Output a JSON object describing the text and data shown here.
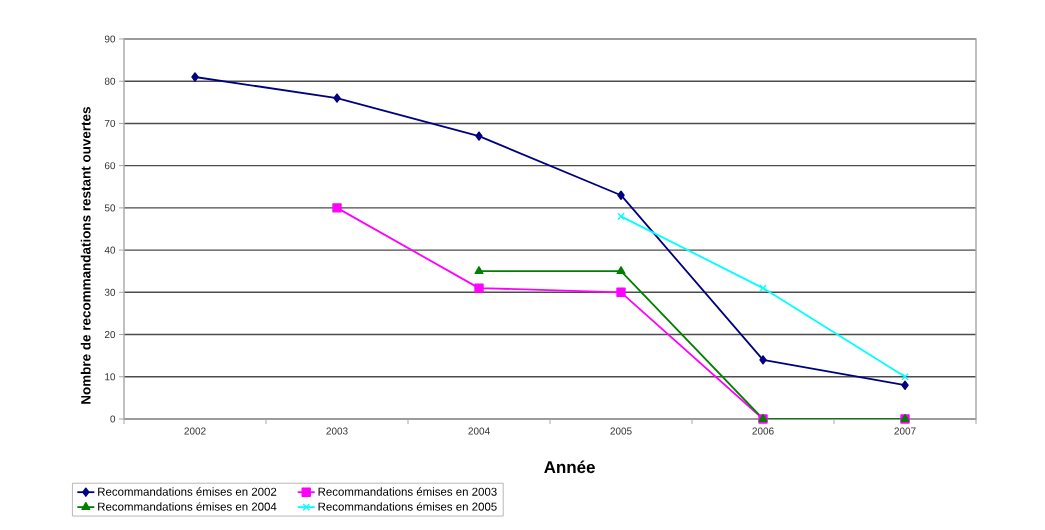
{
  "chart_data": {
    "type": "line",
    "xlabel": "Année",
    "ylabel": "Nombre de recommandations restant ouvertes",
    "categories": [
      "2002",
      "2003",
      "2004",
      "2005",
      "2006",
      "2007"
    ],
    "ylim": [
      0,
      90
    ],
    "yticks": [
      0,
      10,
      20,
      30,
      40,
      50,
      60,
      70,
      80,
      90
    ],
    "grid": "y",
    "legend": "bottom",
    "series": [
      {
        "name": "Recommandations émises en 2002",
        "color": "#000080",
        "marker": "diamond",
        "values": [
          81,
          76,
          67,
          53,
          14,
          8
        ]
      },
      {
        "name": "Recommandations émises en 2003",
        "color": "#ff00ff",
        "marker": "square",
        "values": [
          null,
          50,
          31,
          30,
          0,
          0
        ]
      },
      {
        "name": "Recommandations émises en 2004",
        "color": "#008000",
        "marker": "triangle",
        "values": [
          null,
          null,
          35,
          35,
          0,
          0
        ]
      },
      {
        "name": "Recommandations émises en 2005",
        "color": "#00ffff",
        "marker": "cross",
        "values": [
          null,
          null,
          null,
          48,
          31,
          10
        ]
      }
    ]
  }
}
